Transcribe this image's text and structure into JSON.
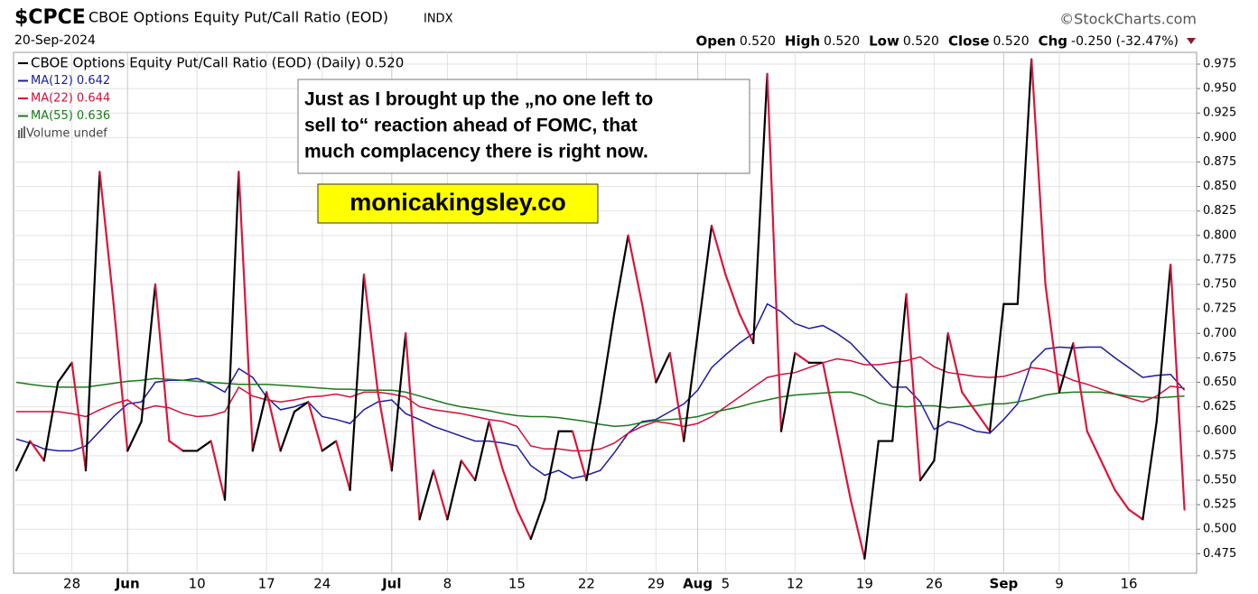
{
  "header": {
    "symbol": "$CPCE",
    "name": "CBOE Options Equity Put/Call Ratio (EOD)",
    "exchange": "INDX",
    "date": "20-Sep-2024",
    "source": "©StockCharts.com",
    "quote": [
      {
        "label": "Open",
        "value": "0.520"
      },
      {
        "label": "High",
        "value": "0.520"
      },
      {
        "label": "Low",
        "value": "0.520"
      },
      {
        "label": "Close",
        "value": "0.520"
      },
      {
        "label": "Chg",
        "value": "-0.250 (-32.47%)"
      }
    ]
  },
  "chart_data": {
    "type": "line",
    "categories": [
      null,
      null,
      null,
      null,
      "28",
      null,
      null,
      null,
      "Jun",
      null,
      null,
      null,
      null,
      "10",
      null,
      null,
      null,
      null,
      "17",
      null,
      null,
      null,
      "24",
      null,
      null,
      null,
      null,
      "Jul",
      null,
      null,
      null,
      "8",
      null,
      null,
      null,
      null,
      "15",
      null,
      null,
      null,
      null,
      "22",
      null,
      null,
      null,
      null,
      "29",
      null,
      null,
      "Aug",
      null,
      "5",
      null,
      null,
      null,
      null,
      "12",
      null,
      null,
      null,
      null,
      "19",
      null,
      null,
      null,
      null,
      "26",
      null,
      null,
      null,
      null,
      "Sep",
      null,
      null,
      null,
      "9",
      null,
      null,
      null,
      null,
      "16",
      null,
      null,
      null,
      null
    ],
    "series": [
      {
        "name": "CBOE Options Equity Put/Call Ratio (EOD) (Daily) 0.520",
        "color": "#000000",
        "down_color": "#dc143c",
        "values": [
          0.56,
          0.59,
          0.57,
          0.65,
          0.67,
          0.56,
          0.865,
          0.73,
          0.58,
          0.61,
          0.75,
          0.59,
          0.58,
          0.58,
          0.59,
          0.53,
          0.865,
          0.58,
          0.64,
          0.58,
          0.62,
          0.63,
          0.58,
          0.59,
          0.54,
          0.76,
          0.64,
          0.56,
          0.7,
          0.51,
          0.56,
          0.51,
          0.57,
          0.55,
          0.61,
          0.56,
          0.52,
          0.49,
          0.53,
          0.6,
          0.6,
          0.55,
          0.63,
          0.72,
          0.8,
          0.73,
          0.65,
          0.68,
          0.59,
          0.7,
          0.81,
          0.76,
          0.72,
          0.69,
          0.965,
          0.6,
          0.68,
          0.67,
          0.67,
          0.6,
          0.53,
          0.47,
          0.59,
          0.59,
          0.74,
          0.55,
          0.57,
          0.7,
          0.64,
          0.62,
          0.6,
          0.73,
          0.73,
          0.98,
          0.75,
          0.64,
          0.69,
          0.6,
          0.57,
          0.54,
          0.52,
          0.51,
          0.61,
          0.77,
          0.52
        ]
      },
      {
        "name": "MA(12) 0.642",
        "color": "#1c1ca0",
        "values": [
          0.592,
          0.588,
          0.582,
          0.58,
          0.58,
          0.585,
          0.6,
          0.615,
          0.628,
          0.63,
          0.65,
          0.652,
          0.652,
          0.654,
          0.648,
          0.64,
          0.664,
          0.655,
          0.635,
          0.622,
          0.625,
          0.63,
          0.615,
          0.612,
          0.608,
          0.622,
          0.63,
          0.632,
          0.618,
          0.612,
          0.605,
          0.6,
          0.595,
          0.59,
          0.59,
          0.588,
          0.585,
          0.565,
          0.555,
          0.56,
          0.552,
          0.555,
          0.56,
          0.578,
          0.598,
          0.61,
          0.612,
          0.62,
          0.628,
          0.642,
          0.665,
          0.678,
          0.69,
          0.7,
          0.73,
          0.722,
          0.71,
          0.705,
          0.708,
          0.7,
          0.69,
          0.675,
          0.66,
          0.645,
          0.645,
          0.63,
          0.602,
          0.61,
          0.606,
          0.6,
          0.598,
          0.612,
          0.628,
          0.67,
          0.684,
          0.686,
          0.685,
          0.686,
          0.686,
          0.675,
          0.665,
          0.655,
          0.657,
          0.658,
          0.642
        ]
      },
      {
        "name": "MA(22) 0.644",
        "color": "#d0103a",
        "values": [
          0.62,
          0.62,
          0.62,
          0.62,
          0.618,
          0.615,
          0.622,
          0.628,
          0.632,
          0.622,
          0.626,
          0.624,
          0.618,
          0.615,
          0.616,
          0.62,
          0.645,
          0.636,
          0.632,
          0.63,
          0.632,
          0.635,
          0.636,
          0.638,
          0.635,
          0.64,
          0.64,
          0.638,
          0.635,
          0.625,
          0.622,
          0.62,
          0.618,
          0.615,
          0.612,
          0.61,
          0.605,
          0.585,
          0.582,
          0.582,
          0.58,
          0.58,
          0.582,
          0.588,
          0.598,
          0.605,
          0.61,
          0.608,
          0.605,
          0.608,
          0.615,
          0.625,
          0.635,
          0.645,
          0.655,
          0.658,
          0.66,
          0.665,
          0.67,
          0.674,
          0.672,
          0.668,
          0.668,
          0.67,
          0.672,
          0.676,
          0.666,
          0.66,
          0.658,
          0.656,
          0.655,
          0.656,
          0.66,
          0.665,
          0.663,
          0.658,
          0.652,
          0.648,
          0.643,
          0.638,
          0.634,
          0.63,
          0.636,
          0.646,
          0.644
        ]
      },
      {
        "name": "MA(55) 0.636",
        "color": "#1a7a1a",
        "values": [
          0.65,
          0.648,
          0.646,
          0.645,
          0.645,
          0.645,
          0.647,
          0.649,
          0.651,
          0.652,
          0.654,
          0.653,
          0.652,
          0.651,
          0.65,
          0.649,
          0.648,
          0.648,
          0.648,
          0.647,
          0.646,
          0.645,
          0.644,
          0.643,
          0.643,
          0.642,
          0.642,
          0.642,
          0.64,
          0.636,
          0.632,
          0.628,
          0.625,
          0.623,
          0.621,
          0.618,
          0.616,
          0.615,
          0.615,
          0.614,
          0.612,
          0.61,
          0.607,
          0.605,
          0.606,
          0.609,
          0.611,
          0.612,
          0.613,
          0.615,
          0.619,
          0.622,
          0.625,
          0.629,
          0.632,
          0.635,
          0.637,
          0.638,
          0.639,
          0.64,
          0.64,
          0.636,
          0.629,
          0.626,
          0.625,
          0.626,
          0.626,
          0.624,
          0.625,
          0.626,
          0.628,
          0.628,
          0.63,
          0.633,
          0.637,
          0.639,
          0.64,
          0.64,
          0.64,
          0.638,
          0.636,
          0.635,
          0.634,
          0.635,
          0.636
        ]
      }
    ],
    "volume_label": "Volume undef",
    "annotation": [
      "Just as I brought up the „no one left to",
      "sell to“ reaction ahead of FOMC, that",
      "much complacency there is right now."
    ],
    "watermark": "monicakingsley.co",
    "ylim": [
      0.455,
      0.987
    ],
    "yticks": [
      0.475,
      {
        "value": 0.5,
        "label": "0.500"
      },
      0.525,
      {
        "value": 0.55,
        "label": "0.550"
      },
      0.575,
      {
        "value": 0.6,
        "label": "0.600"
      },
      0.625,
      {
        "value": 0.65,
        "label": "0.650"
      },
      0.675,
      {
        "value": 0.7,
        "label": "0.700"
      },
      0.725,
      {
        "value": 0.75,
        "label": "0.750"
      },
      0.775,
      {
        "value": 0.8,
        "label": "0.800"
      },
      0.825,
      {
        "value": 0.85,
        "label": "0.850"
      },
      0.875,
      {
        "value": 0.9,
        "label": "0.900"
      },
      0.925,
      {
        "value": 0.95,
        "label": "0.950"
      },
      0.975
    ],
    "grid": true
  }
}
